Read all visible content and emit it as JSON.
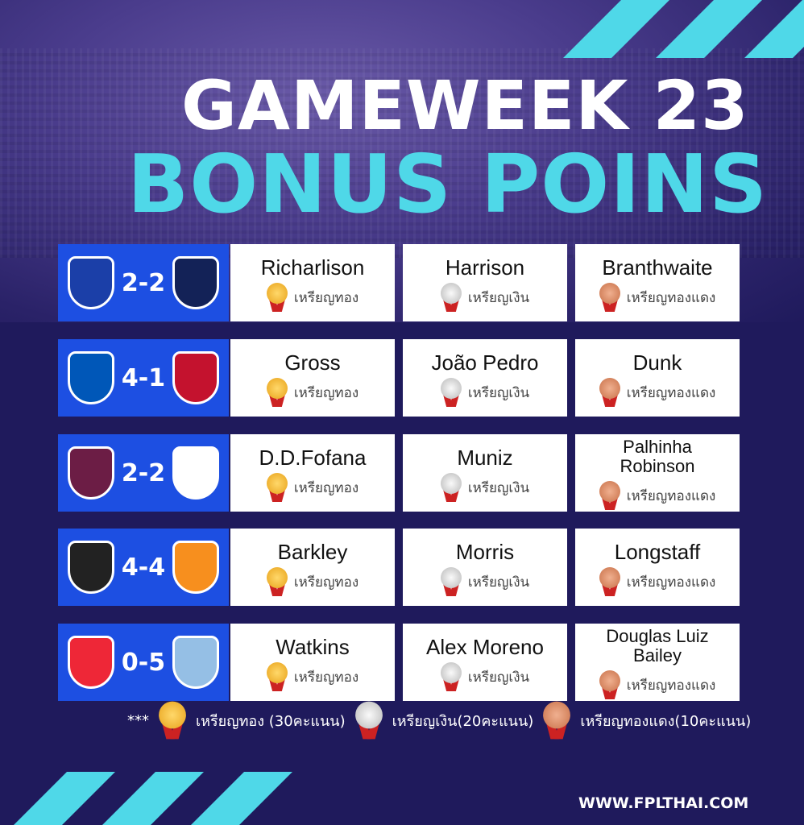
{
  "title": {
    "line1": "GAMEWEEK 23",
    "line2": "BONUS POINS"
  },
  "colors": {
    "accent": "#4fd8e8",
    "background": "#1f1a5c",
    "match_block": "#1d4fe2"
  },
  "matches": [
    {
      "home_crest": "everton-crest",
      "away_crest": "tottenham-crest",
      "score": "2-2",
      "gold": "Richarlison",
      "silver": "Harrison",
      "bronze": "Branthwaite"
    },
    {
      "home_crest": "brighton-crest",
      "away_crest": "crystal-palace-crest",
      "score": "4-1",
      "gold": "Gross",
      "silver": "João Pedro",
      "bronze": "Dunk"
    },
    {
      "home_crest": "burnley-crest",
      "away_crest": "fulham-crest",
      "score": "2-2",
      "gold": "D.D.Fofana",
      "silver": "Muniz",
      "bronze": "Palhinha Robinson"
    },
    {
      "home_crest": "newcastle-crest",
      "away_crest": "luton-crest",
      "score": "4-4",
      "gold": "Barkley",
      "silver": "Morris",
      "bronze": "Longstaff"
    },
    {
      "home_crest": "sheffield-united-crest",
      "away_crest": "aston-villa-crest",
      "score": "0-5",
      "gold": "Watkins",
      "silver": "Alex Moreno",
      "bronze": "Douglas Luiz Bailey"
    }
  ],
  "medal_labels": {
    "gold": "เหรียญทอง",
    "silver": "เหรียญเงิน",
    "bronze": "เหรียญทองแดง"
  },
  "legend": {
    "prefix": "***",
    "gold": "เหรียญทอง (30คะแนน)",
    "silver": "เหรียญเงิน(20คะแนน)",
    "bronze": "เหรียญทองแดง(10คะแนน)"
  },
  "website": "WWW.FPLTHAI.COM"
}
